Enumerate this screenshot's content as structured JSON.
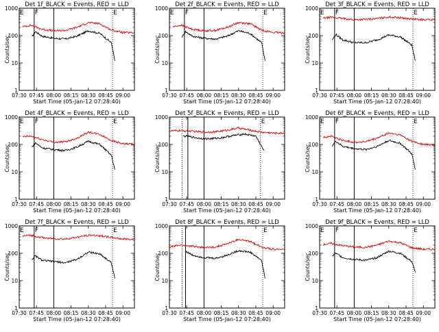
{
  "chart_data": [
    {
      "type": "line",
      "title": "Det 1f_BLACK = Events, RED = LLD",
      "xlabel": "Start Time (05-Jan-12 07:28:40)",
      "ylabel": "Counts/sec",
      "xticks": [
        "07:30",
        "07:45",
        "08:00",
        "08:15",
        "08:30",
        "08:45",
        "09:00"
      ],
      "yticks": [
        "1",
        "10",
        "100",
        "1000"
      ],
      "ylim": [
        1,
        1000
      ],
      "yscale": "log",
      "markers": [
        {
          "label": "E",
          "time": "07:30",
          "style": "dotted"
        },
        {
          "label": "F",
          "time": "07:43",
          "style": "solid"
        },
        {
          "label": "",
          "time": "08:00",
          "style": "solid"
        },
        {
          "label": "E",
          "time": "08:51",
          "style": "dotted"
        }
      ],
      "series": [
        {
          "name": "Events",
          "color": "#000000",
          "x": [
            "07:41",
            "07:44",
            "07:50",
            "08:00",
            "08:10",
            "08:20",
            "08:30",
            "08:40",
            "08:50",
            "08:53"
          ],
          "y": [
            90,
            140,
            95,
            80,
            75,
            95,
            150,
            120,
            55,
            12
          ]
        },
        {
          "name": "LLD",
          "color": "#dd0000",
          "x": [
            "07:33",
            "07:40",
            "07:50",
            "08:00",
            "08:10",
            "08:20",
            "08:30",
            "08:40",
            "08:50",
            "09:00",
            "09:10"
          ],
          "y": [
            210,
            240,
            170,
            150,
            155,
            200,
            300,
            270,
            160,
            130,
            125
          ]
        }
      ]
    },
    {
      "type": "line",
      "title": "Det 2f_BLACK = Events, RED = LLD",
      "xlabel": "Start Time (05-Jan-12 07:28:40)",
      "ylabel": "Counts/sec",
      "xticks": [
        "07:30",
        "07:45",
        "08:00",
        "08:15",
        "08:30",
        "08:45",
        "09:00"
      ],
      "yticks": [
        "1",
        "10",
        "100",
        "1000"
      ],
      "ylim": [
        1,
        1000
      ],
      "yscale": "log",
      "markers": [
        {
          "label": "E",
          "time": "07:30",
          "style": "dotted"
        },
        {
          "label": "F",
          "time": "07:43",
          "style": "solid"
        },
        {
          "label": "",
          "time": "08:00",
          "style": "solid"
        },
        {
          "label": "E",
          "time": "08:51",
          "style": "dotted"
        }
      ],
      "series": [
        {
          "name": "Events",
          "color": "#000000",
          "x": [
            "07:41",
            "07:44",
            "07:50",
            "08:00",
            "08:10",
            "08:20",
            "08:30",
            "08:40",
            "08:50",
            "08:53"
          ],
          "y": [
            90,
            140,
            95,
            80,
            75,
            95,
            150,
            120,
            55,
            12
          ]
        },
        {
          "name": "LLD",
          "color": "#dd0000",
          "x": [
            "07:33",
            "07:40",
            "07:50",
            "08:00",
            "08:10",
            "08:20",
            "08:30",
            "08:40",
            "08:50",
            "09:00",
            "09:10"
          ],
          "y": [
            210,
            240,
            170,
            150,
            155,
            200,
            300,
            270,
            160,
            130,
            125
          ]
        }
      ]
    },
    {
      "type": "line",
      "title": "Det 3f_BLACK = Events, RED = LLD",
      "xlabel": "Start Time (05-Jan-12 07:28:40)",
      "ylabel": "Counts/sec",
      "xticks": [
        "07:30",
        "07:45",
        "08:00",
        "08:15",
        "08:30",
        "08:45",
        "09:00"
      ],
      "yticks": [
        "1",
        "10",
        "100",
        "1000"
      ],
      "ylim": [
        1,
        1000
      ],
      "yscale": "log",
      "markers": [
        {
          "label": "E",
          "time": "07:30",
          "style": "dotted"
        },
        {
          "label": "F",
          "time": "07:43",
          "style": "solid"
        },
        {
          "label": "",
          "time": "08:00",
          "style": "solid"
        },
        {
          "label": "E",
          "time": "08:51",
          "style": "dotted"
        }
      ],
      "series": [
        {
          "name": "Events",
          "color": "#000000",
          "x": [
            "07:41",
            "07:44",
            "07:50",
            "08:00",
            "08:10",
            "08:20",
            "08:30",
            "08:40",
            "08:50",
            "08:53"
          ],
          "y": [
            70,
            110,
            70,
            55,
            55,
            70,
            105,
            90,
            45,
            12
          ]
        },
        {
          "name": "LLD",
          "color": "#dd0000",
          "x": [
            "07:33",
            "07:40",
            "07:50",
            "08:00",
            "08:10",
            "08:20",
            "08:30",
            "08:40",
            "08:50",
            "09:00",
            "09:10"
          ],
          "y": [
            430,
            470,
            420,
            380,
            390,
            420,
            480,
            450,
            400,
            380,
            380
          ]
        }
      ]
    },
    {
      "type": "line",
      "title": "Det 4f_BLACK = Events, RED = LLD",
      "xlabel": "Start Time (05-Jan-12 07:28:40)",
      "ylabel": "Counts/sec",
      "xticks": [
        "07:30",
        "07:45",
        "08:00",
        "08:15",
        "08:30",
        "08:45",
        "09:00"
      ],
      "yticks": [
        "1",
        "10",
        "100",
        "1000"
      ],
      "ylim": [
        1,
        1000
      ],
      "yscale": "log",
      "markers": [
        {
          "label": "E",
          "time": "07:30",
          "style": "dotted"
        },
        {
          "label": "F",
          "time": "07:43",
          "style": "solid"
        },
        {
          "label": "",
          "time": "08:00",
          "style": "solid"
        },
        {
          "label": "E",
          "time": "08:51",
          "style": "dotted"
        }
      ],
      "series": [
        {
          "name": "Events",
          "color": "#000000",
          "x": [
            "07:41",
            "07:44",
            "07:50",
            "08:00",
            "08:10",
            "08:20",
            "08:30",
            "08:40",
            "08:50",
            "08:53"
          ],
          "y": [
            80,
            115,
            75,
            65,
            60,
            80,
            130,
            100,
            40,
            12
          ]
        },
        {
          "name": "LLD",
          "color": "#dd0000",
          "x": [
            "07:33",
            "07:40",
            "07:50",
            "08:00",
            "08:10",
            "08:20",
            "08:30",
            "08:40",
            "08:50",
            "09:00",
            "09:10"
          ],
          "y": [
            190,
            200,
            150,
            120,
            125,
            170,
            280,
            230,
            140,
            105,
            100
          ]
        }
      ]
    },
    {
      "type": "line",
      "title": "Det 5f_BLACK = Events, RED = LLD",
      "xlabel": "Start Time (05-Jan-12 07:28:40)",
      "ylabel": "Counts/sec",
      "xticks": [
        "07:30",
        "07:45",
        "08:00",
        "08:15",
        "08:30",
        "08:45",
        "09:00"
      ],
      "yticks": [
        "1",
        "10",
        "100",
        "1000"
      ],
      "ylim": [
        1,
        1000
      ],
      "yscale": "log",
      "markers": [
        {
          "label": "",
          "time": "07:41",
          "style": "dotted"
        },
        {
          "label": "",
          "time": "07:46",
          "style": "solid"
        },
        {
          "label": "",
          "time": "08:00",
          "style": "solid"
        },
        {
          "label": "E",
          "time": "08:49",
          "style": "dotted"
        }
      ],
      "series": [
        {
          "name": "Events",
          "color": "#000000",
          "x": [
            "07:42",
            "07:45",
            "07:55",
            "08:05",
            "08:15",
            "08:25",
            "08:35",
            "08:45",
            "08:52"
          ],
          "y": [
            200,
            200,
            170,
            160,
            175,
            210,
            240,
            200,
            60
          ]
        },
        {
          "name": "LLD",
          "color": "#dd0000",
          "x": [
            "07:30",
            "07:40",
            "07:50",
            "08:00",
            "08:10",
            "08:20",
            "08:30",
            "08:40",
            "08:50",
            "09:00",
            "09:10"
          ],
          "y": [
            310,
            320,
            300,
            280,
            290,
            330,
            400,
            330,
            280,
            260,
            260
          ]
        }
      ]
    },
    {
      "type": "line",
      "title": "Det 6f_BLACK = Events, RED = LLD",
      "xlabel": "Start Time (05-Jan-12 07:28:40)",
      "ylabel": "Counts/sec",
      "xticks": [
        "07:30",
        "07:45",
        "08:00",
        "08:15",
        "08:30",
        "08:45",
        "09:00"
      ],
      "yticks": [
        "1",
        "10",
        "100",
        "1000"
      ],
      "ylim": [
        1,
        1000
      ],
      "yscale": "log",
      "markers": [
        {
          "label": "E",
          "time": "07:30",
          "style": "dotted"
        },
        {
          "label": "F",
          "time": "07:43",
          "style": "solid"
        },
        {
          "label": "",
          "time": "08:00",
          "style": "solid"
        },
        {
          "label": "E",
          "time": "08:51",
          "style": "dotted"
        }
      ],
      "series": [
        {
          "name": "Events",
          "color": "#000000",
          "x": [
            "07:41",
            "07:44",
            "07:50",
            "08:00",
            "08:10",
            "08:20",
            "08:30",
            "08:40",
            "08:50",
            "08:53"
          ],
          "y": [
            90,
            130,
            85,
            70,
            65,
            85,
            140,
            110,
            45,
            12
          ]
        },
        {
          "name": "LLD",
          "color": "#dd0000",
          "x": [
            "07:33",
            "07:40",
            "07:50",
            "08:00",
            "08:10",
            "08:20",
            "08:30",
            "08:40",
            "08:50",
            "09:00",
            "09:10"
          ],
          "y": [
            180,
            200,
            140,
            120,
            125,
            170,
            260,
            220,
            130,
            100,
            95
          ]
        }
      ]
    },
    {
      "type": "line",
      "title": "Det 7f_BLACK = Events, RED = LLD",
      "xlabel": "Start Time (05-Jan-12 07:28:40)",
      "ylabel": "Counts/sec",
      "xticks": [
        "07:30",
        "07:45",
        "08:00",
        "08:15",
        "08:30",
        "08:45",
        "09:00"
      ],
      "yticks": [
        "1",
        "10",
        "100",
        "1000"
      ],
      "ylim": [
        1,
        1000
      ],
      "yscale": "log",
      "markers": [
        {
          "label": "E",
          "time": "07:30",
          "style": "dotted"
        },
        {
          "label": "F",
          "time": "07:43",
          "style": "solid"
        },
        {
          "label": "",
          "time": "08:00",
          "style": "solid"
        },
        {
          "label": "E",
          "time": "08:51",
          "style": "dotted"
        }
      ],
      "series": [
        {
          "name": "Events",
          "color": "#000000",
          "x": [
            "07:41",
            "07:44",
            "07:50",
            "08:00",
            "08:10",
            "08:20",
            "08:30",
            "08:40",
            "08:50",
            "08:53"
          ],
          "y": [
            60,
            80,
            55,
            50,
            45,
            60,
            110,
            95,
            45,
            12
          ]
        },
        {
          "name": "LLD",
          "color": "#dd0000",
          "x": [
            "07:33",
            "07:40",
            "07:50",
            "08:00",
            "08:10",
            "08:20",
            "08:30",
            "08:40",
            "08:50",
            "09:00",
            "09:10"
          ],
          "y": [
            420,
            460,
            370,
            340,
            330,
            380,
            460,
            440,
            380,
            330,
            330
          ]
        }
      ]
    },
    {
      "type": "line",
      "title": "Det 8f_BLACK = Events, RED = LLD",
      "xlabel": "Start Time (05-Jan-12 07:28:40)",
      "ylabel": "Counts/sec",
      "xticks": [
        "07:30",
        "07:45",
        "08:00",
        "08:15",
        "08:30",
        "08:45",
        "09:00"
      ],
      "yticks": [
        "1",
        "10",
        "100",
        "1000"
      ],
      "ylim": [
        1,
        1000
      ],
      "yscale": "log",
      "markers": [
        {
          "label": "",
          "time": "07:41",
          "style": "dotted"
        },
        {
          "label": "",
          "time": "07:44",
          "style": "solid"
        },
        {
          "label": "",
          "time": "08:00",
          "style": "solid"
        },
        {
          "label": "E",
          "time": "08:51",
          "style": "dotted"
        }
      ],
      "series": [
        {
          "name": "Events",
          "color": "#000000",
          "x": [
            "07:44",
            "07:50",
            "08:00",
            "08:10",
            "08:20",
            "08:30",
            "08:40",
            "08:50",
            "08:53"
          ],
          "y": [
            120,
            85,
            70,
            65,
            85,
            125,
            110,
            55,
            12
          ]
        },
        {
          "name": "LLD",
          "color": "#dd0000",
          "x": [
            "07:30",
            "07:40",
            "07:50",
            "08:00",
            "08:10",
            "08:20",
            "08:30",
            "08:40",
            "08:50",
            "09:00",
            "09:10"
          ],
          "y": [
            170,
            200,
            180,
            160,
            170,
            220,
            320,
            270,
            170,
            140,
            140
          ]
        }
      ]
    },
    {
      "type": "line",
      "title": "Det 9f_BLACK = Events, RED = LLD",
      "xlabel": "Start Time (05-Jan-12 07:28:40)",
      "ylabel": "Counts/sec",
      "xticks": [
        "07:30",
        "07:45",
        "08:00",
        "08:15",
        "08:30",
        "08:45",
        "09:00"
      ],
      "yticks": [
        "1",
        "10",
        "100",
        "1000"
      ],
      "ylim": [
        1,
        1000
      ],
      "yscale": "log",
      "markers": [
        {
          "label": "E",
          "time": "07:30",
          "style": "dotted"
        },
        {
          "label": "F",
          "time": "07:43",
          "style": "solid"
        },
        {
          "label": "",
          "time": "08:00",
          "style": "solid"
        },
        {
          "label": "E",
          "time": "08:51",
          "style": "dotted"
        }
      ],
      "series": [
        {
          "name": "Events",
          "color": "#000000",
          "x": [
            "07:41",
            "07:44",
            "07:50",
            "08:00",
            "08:10",
            "08:20",
            "08:30",
            "08:40",
            "08:50",
            "08:53"
          ],
          "y": [
            80,
            100,
            70,
            60,
            55,
            70,
            120,
            100,
            50,
            20
          ]
        },
        {
          "name": "LLD",
          "color": "#dd0000",
          "x": [
            "07:33",
            "07:40",
            "07:50",
            "08:00",
            "08:10",
            "08:20",
            "08:30",
            "08:40",
            "08:50",
            "09:00",
            "09:10"
          ],
          "y": [
            210,
            230,
            190,
            170,
            165,
            200,
            280,
            240,
            160,
            140,
            140
          ]
        }
      ]
    }
  ]
}
